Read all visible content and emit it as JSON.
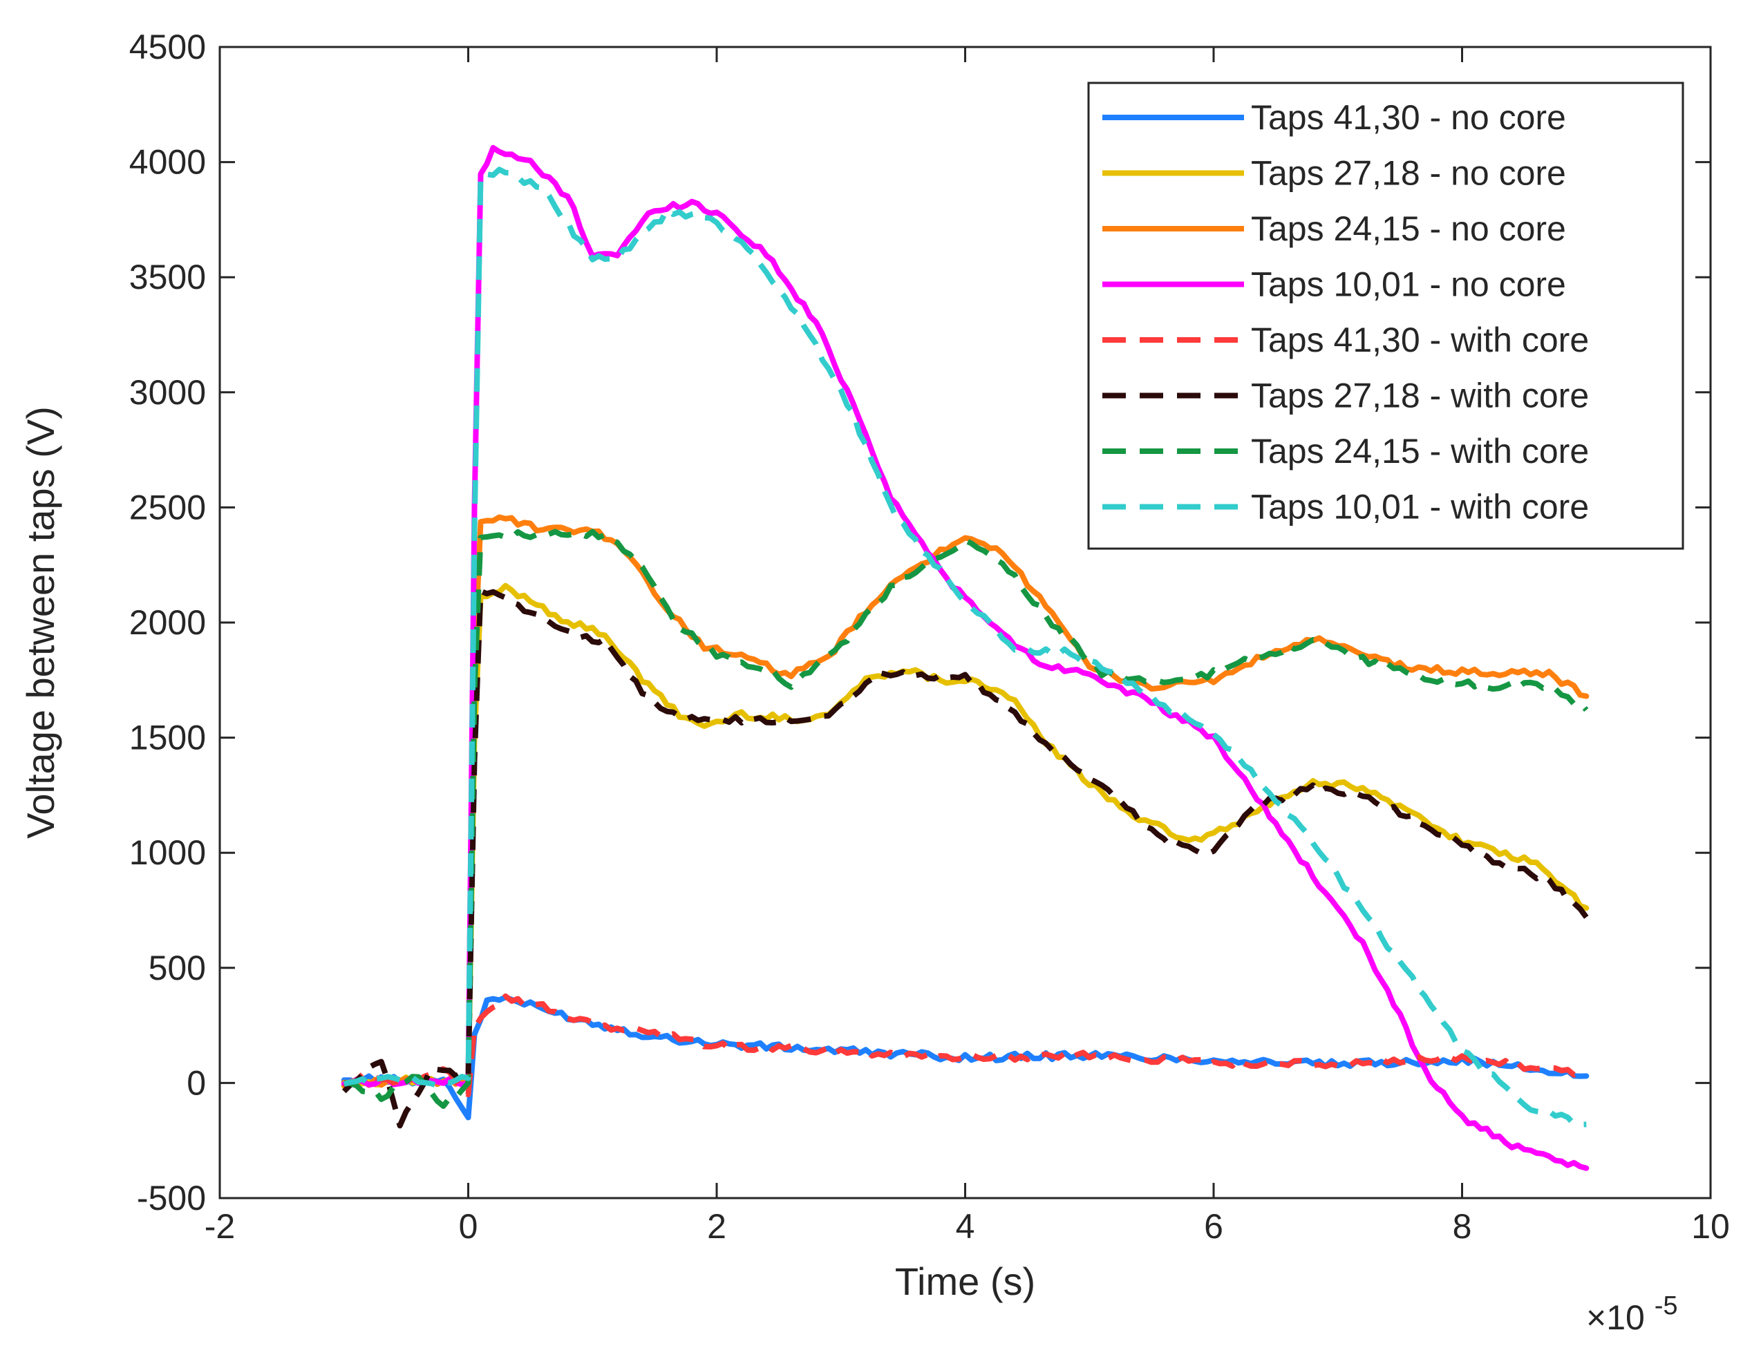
{
  "chart_data": {
    "type": "line",
    "title": "",
    "xlabel": "Time (s)",
    "ylabel": "Voltage between taps (V)",
    "x_multiplier_label": {
      "base": "×10",
      "exponent": "-5"
    },
    "xlim": [
      -2,
      10
    ],
    "ylim": [
      -500,
      4500
    ],
    "xticks": [
      "-2",
      "0",
      "2",
      "4",
      "6",
      "8",
      "10"
    ],
    "yticks": [
      "-500",
      "0",
      "500",
      "1000",
      "1500",
      "2000",
      "2500",
      "3000",
      "3500",
      "4000",
      "4500"
    ],
    "legend_position": "top-right",
    "series": [
      {
        "name": "Taps 41,30 - no core",
        "color": "#1f80ff",
        "dash": "solid",
        "points": [
          [
            -1,
            0
          ],
          [
            -0.8,
            20
          ],
          [
            -0.5,
            10
          ],
          [
            -0.2,
            20
          ],
          [
            0,
            -150
          ],
          [
            0.05,
            200
          ],
          [
            0.15,
            360
          ],
          [
            0.3,
            370
          ],
          [
            0.6,
            320
          ],
          [
            1,
            260
          ],
          [
            1.5,
            200
          ],
          [
            2,
            170
          ],
          [
            3,
            140
          ],
          [
            4,
            110
          ],
          [
            5,
            120
          ],
          [
            6,
            100
          ],
          [
            7,
            80
          ],
          [
            8,
            100
          ],
          [
            9,
            30
          ]
        ]
      },
      {
        "name": "Taps 27,18 - no core",
        "color": "#e6c000",
        "dash": "solid",
        "points": [
          [
            -1,
            0
          ],
          [
            -0.5,
            10
          ],
          [
            0,
            0
          ],
          [
            0.05,
            1500
          ],
          [
            0.1,
            2100
          ],
          [
            0.3,
            2150
          ],
          [
            0.5,
            2100
          ],
          [
            0.8,
            2000
          ],
          [
            1.1,
            1950
          ],
          [
            1.4,
            1750
          ],
          [
            1.7,
            1600
          ],
          [
            1.9,
            1550
          ],
          [
            2.2,
            1600
          ],
          [
            2.6,
            1580
          ],
          [
            2.9,
            1600
          ],
          [
            3.2,
            1750
          ],
          [
            3.5,
            1800
          ],
          [
            3.8,
            1750
          ],
          [
            4.1,
            1750
          ],
          [
            4.4,
            1650
          ],
          [
            4.7,
            1450
          ],
          [
            5,
            1300
          ],
          [
            5.4,
            1150
          ],
          [
            5.8,
            1050
          ],
          [
            6.1,
            1100
          ],
          [
            6.4,
            1200
          ],
          [
            6.8,
            1300
          ],
          [
            7.1,
            1300
          ],
          [
            7.5,
            1200
          ],
          [
            8,
            1050
          ],
          [
            8.6,
            950
          ],
          [
            9,
            760
          ]
        ]
      },
      {
        "name": "Taps 24,15 - no core",
        "color": "#ff7f0e",
        "dash": "solid",
        "points": [
          [
            -1,
            0
          ],
          [
            -0.5,
            10
          ],
          [
            0,
            0
          ],
          [
            0.05,
            1800
          ],
          [
            0.1,
            2450
          ],
          [
            0.3,
            2450
          ],
          [
            0.6,
            2400
          ],
          [
            1,
            2400
          ],
          [
            1.3,
            2300
          ],
          [
            1.6,
            2050
          ],
          [
            1.9,
            1900
          ],
          [
            2.2,
            1850
          ],
          [
            2.6,
            1770
          ],
          [
            2.9,
            1850
          ],
          [
            3.2,
            2050
          ],
          [
            3.6,
            2250
          ],
          [
            4,
            2360
          ],
          [
            4.3,
            2300
          ],
          [
            4.7,
            2050
          ],
          [
            5,
            1800
          ],
          [
            5.5,
            1720
          ],
          [
            6,
            1750
          ],
          [
            6.4,
            1850
          ],
          [
            6.8,
            1930
          ],
          [
            7.2,
            1860
          ],
          [
            7.6,
            1800
          ],
          [
            8.2,
            1780
          ],
          [
            8.7,
            1780
          ],
          [
            9,
            1680
          ]
        ]
      },
      {
        "name": "Taps 10,01 - no core",
        "color": "#ff00ff",
        "dash": "solid",
        "points": [
          [
            -1,
            0
          ],
          [
            -0.5,
            10
          ],
          [
            0,
            0
          ],
          [
            0.05,
            2500
          ],
          [
            0.1,
            3950
          ],
          [
            0.2,
            4050
          ],
          [
            0.5,
            4000
          ],
          [
            0.8,
            3850
          ],
          [
            1,
            3600
          ],
          [
            1.2,
            3600
          ],
          [
            1.5,
            3800
          ],
          [
            1.8,
            3820
          ],
          [
            2,
            3780
          ],
          [
            2.4,
            3600
          ],
          [
            2.8,
            3300
          ],
          [
            3.1,
            2950
          ],
          [
            3.4,
            2550
          ],
          [
            3.7,
            2300
          ],
          [
            4,
            2100
          ],
          [
            4.3,
            1950
          ],
          [
            4.6,
            1820
          ],
          [
            5,
            1780
          ],
          [
            5.5,
            1650
          ],
          [
            6,
            1500
          ],
          [
            6.4,
            1200
          ],
          [
            6.8,
            900
          ],
          [
            7.2,
            600
          ],
          [
            7.5,
            300
          ],
          [
            7.7,
            50
          ],
          [
            8,
            -150
          ],
          [
            8.5,
            -300
          ],
          [
            9,
            -370
          ]
        ]
      },
      {
        "name": "Taps 41,30 - with core",
        "color": "#ff3a3a",
        "dash": "dashed",
        "points": [
          [
            -1,
            -20
          ],
          [
            -0.8,
            40
          ],
          [
            -0.5,
            0
          ],
          [
            -0.2,
            60
          ],
          [
            0,
            -50
          ],
          [
            0.05,
            250
          ],
          [
            0.15,
            320
          ],
          [
            0.3,
            370
          ],
          [
            0.6,
            330
          ],
          [
            1,
            250
          ],
          [
            1.5,
            220
          ],
          [
            2,
            160
          ],
          [
            3,
            140
          ],
          [
            4,
            110
          ],
          [
            5,
            120
          ],
          [
            6,
            90
          ],
          [
            7,
            80
          ],
          [
            8,
            110
          ],
          [
            9,
            40
          ]
        ]
      },
      {
        "name": "Taps 27,18 - with core",
        "color": "#2b0a0a",
        "dash": "dashed",
        "points": [
          [
            -1,
            -40
          ],
          [
            -0.7,
            100
          ],
          [
            -0.55,
            -180
          ],
          [
            -0.3,
            60
          ],
          [
            0,
            30
          ],
          [
            0.05,
            1400
          ],
          [
            0.1,
            2150
          ],
          [
            0.4,
            2080
          ],
          [
            0.8,
            1950
          ],
          [
            1.1,
            1920
          ],
          [
            1.4,
            1700
          ],
          [
            1.7,
            1580
          ],
          [
            2,
            1580
          ],
          [
            2.5,
            1570
          ],
          [
            2.9,
            1600
          ],
          [
            3.3,
            1780
          ],
          [
            3.6,
            1770
          ],
          [
            4,
            1770
          ],
          [
            4.4,
            1600
          ],
          [
            4.8,
            1400
          ],
          [
            5.2,
            1250
          ],
          [
            5.6,
            1050
          ],
          [
            6,
            1000
          ],
          [
            6.3,
            1200
          ],
          [
            6.8,
            1280
          ],
          [
            7.2,
            1250
          ],
          [
            7.6,
            1150
          ],
          [
            8.2,
            980
          ],
          [
            8.7,
            880
          ],
          [
            9,
            720
          ]
        ]
      },
      {
        "name": "Taps 24,15 - with core",
        "color": "#159643",
        "dash": "dashed",
        "points": [
          [
            -1,
            10
          ],
          [
            -0.7,
            -60
          ],
          [
            -0.4,
            40
          ],
          [
            -0.2,
            -100
          ],
          [
            0,
            0
          ],
          [
            0.05,
            1700
          ],
          [
            0.1,
            2380
          ],
          [
            0.4,
            2380
          ],
          [
            0.8,
            2380
          ],
          [
            1.1,
            2380
          ],
          [
            1.4,
            2250
          ],
          [
            1.7,
            1980
          ],
          [
            2,
            1860
          ],
          [
            2.4,
            1800
          ],
          [
            2.6,
            1730
          ],
          [
            3,
            1900
          ],
          [
            3.4,
            2150
          ],
          [
            3.7,
            2250
          ],
          [
            4,
            2350
          ],
          [
            4.3,
            2260
          ],
          [
            4.7,
            2000
          ],
          [
            5.1,
            1780
          ],
          [
            5.6,
            1730
          ],
          [
            6,
            1780
          ],
          [
            6.4,
            1860
          ],
          [
            6.8,
            1920
          ],
          [
            7.2,
            1840
          ],
          [
            7.7,
            1760
          ],
          [
            8.2,
            1720
          ],
          [
            8.7,
            1730
          ],
          [
            9,
            1620
          ]
        ]
      },
      {
        "name": "Taps 10,01 - with core",
        "color": "#33cccc",
        "dash": "dashed",
        "points": [
          [
            -1,
            0
          ],
          [
            -0.6,
            20
          ],
          [
            -0.3,
            0
          ],
          [
            0,
            20
          ],
          [
            0.05,
            2400
          ],
          [
            0.1,
            3950
          ],
          [
            0.3,
            3960
          ],
          [
            0.6,
            3880
          ],
          [
            1,
            3580
          ],
          [
            1.2,
            3580
          ],
          [
            1.6,
            3780
          ],
          [
            1.9,
            3770
          ],
          [
            2.3,
            3600
          ],
          [
            2.7,
            3300
          ],
          [
            3.1,
            2900
          ],
          [
            3.4,
            2500
          ],
          [
            3.7,
            2280
          ],
          [
            4,
            2100
          ],
          [
            4.4,
            1880
          ],
          [
            4.8,
            1870
          ],
          [
            5.2,
            1780
          ],
          [
            5.6,
            1640
          ],
          [
            6,
            1520
          ],
          [
            6.4,
            1300
          ],
          [
            6.8,
            1050
          ],
          [
            7.2,
            750
          ],
          [
            7.6,
            450
          ],
          [
            8,
            150
          ],
          [
            8.5,
            -100
          ],
          [
            9,
            -180
          ]
        ]
      }
    ]
  }
}
